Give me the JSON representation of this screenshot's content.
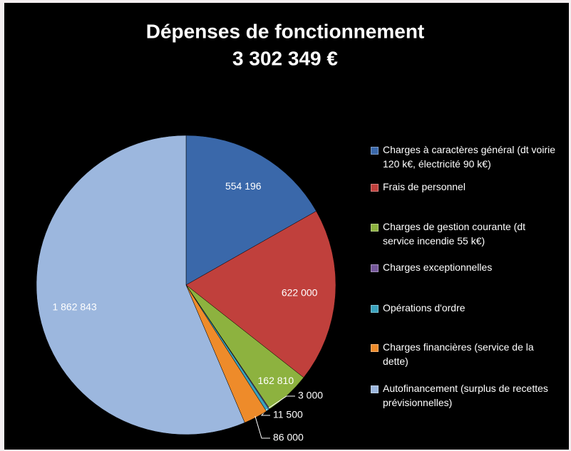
{
  "chart_data": {
    "type": "pie",
    "title": "Dépenses de fonctionnement",
    "subtitle": "3 302 349 €",
    "categories": [
      "Charges à caractères général (dt voirie 120 k€, électricité 90 k€)",
      "Frais de personnel",
      "Charges de gestion courante (dt service incendie 55 k€)",
      "Charges exceptionnelles",
      "Opérations d'ordre",
      "Charges financières (service de la dette)",
      "Autofinancement (surplus de recettes prévisionnelles)"
    ],
    "values": [
      554196,
      622000,
      162810,
      3000,
      11500,
      86000,
      1862843
    ],
    "value_labels": [
      "554 196",
      "622 000",
      "162 810",
      "3 000",
      "11 500",
      "86 000",
      "1 862 843"
    ],
    "colors": [
      "#3a68aa",
      "#c0403c",
      "#8db23f",
      "#76589b",
      "#3aa2bd",
      "#ee8b2a",
      "#9cb7de"
    ],
    "legend": "right"
  }
}
